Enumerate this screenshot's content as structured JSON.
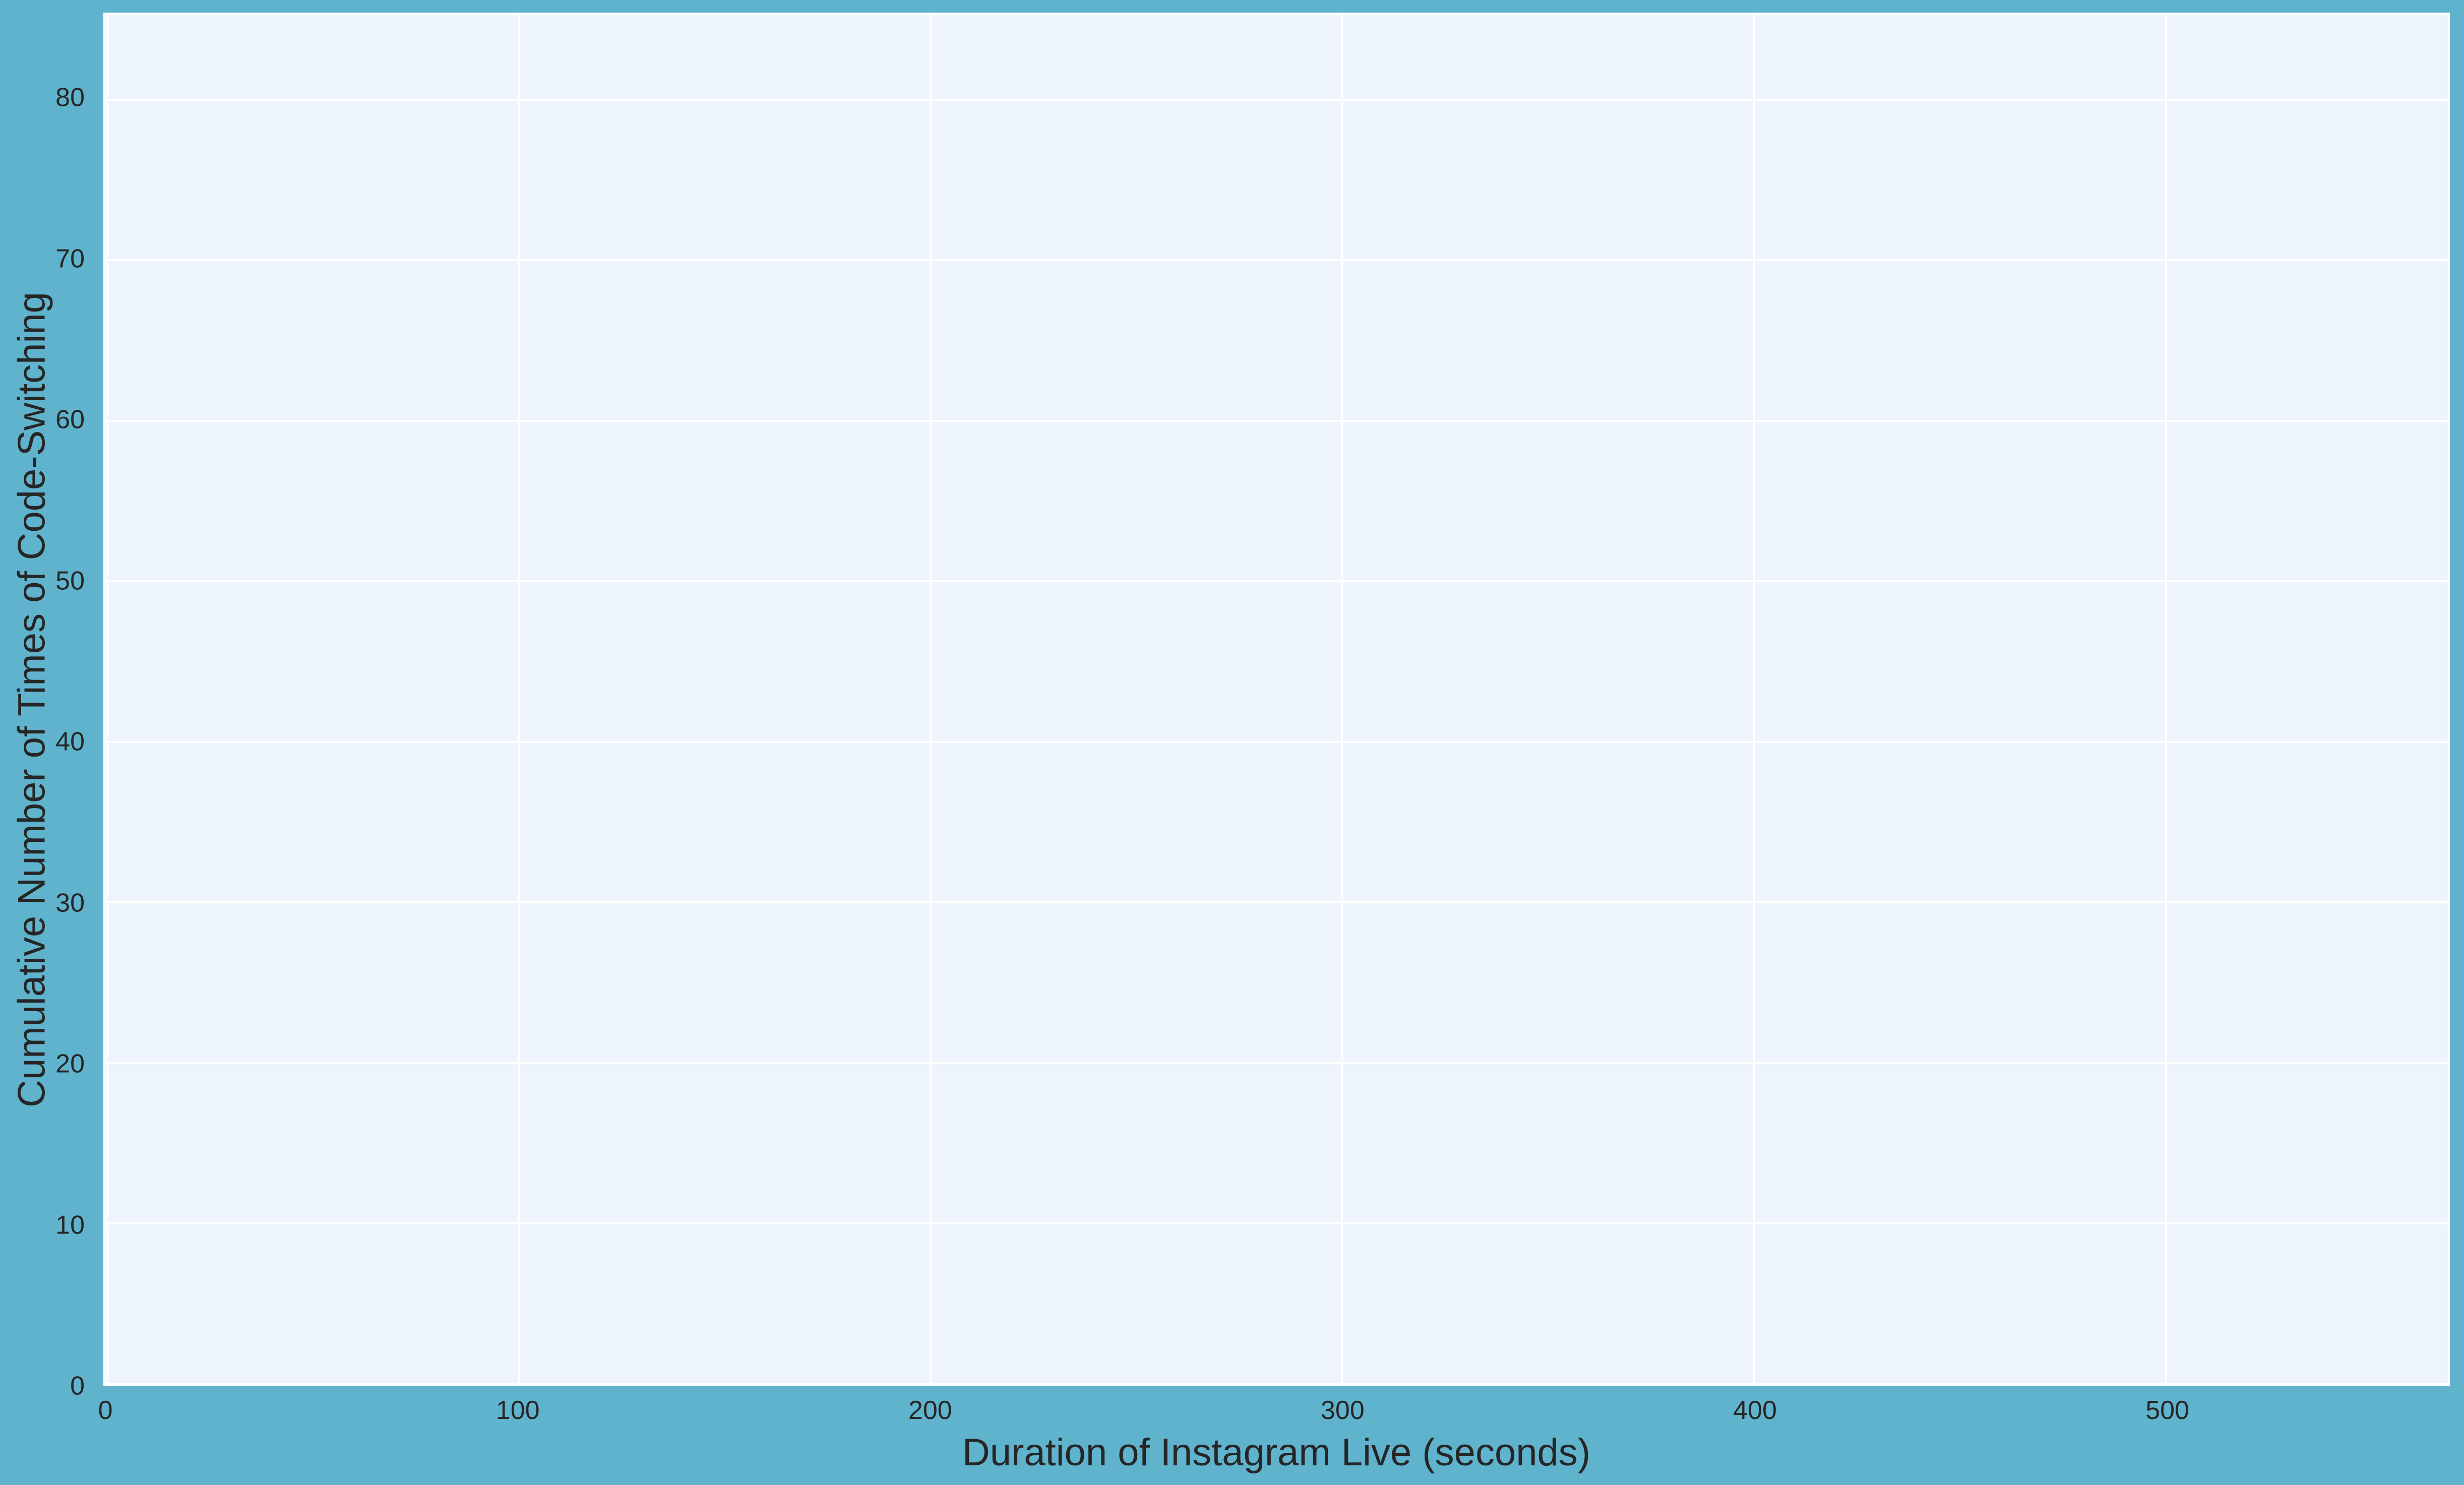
{
  "figure": {
    "background_color": "#60B3CD",
    "plot_background_color": "#EDF4FB",
    "grid_color": "#FFFFFF",
    "text_color": "#262626"
  },
  "chart_data": {
    "type": "line",
    "title": "",
    "xlabel": "Duration of Instagram Live (seconds)",
    "ylabel": "Cumulative Number of Times of Code-Switching",
    "x_ticks": [
      0,
      100,
      200,
      300,
      400,
      500
    ],
    "y_ticks": [
      0,
      10,
      20,
      30,
      40,
      50,
      60,
      70,
      80
    ],
    "x_tick_labels": [
      "0",
      "100",
      "200",
      "300",
      "400",
      "500"
    ],
    "y_tick_labels": [
      "0",
      "10",
      "20",
      "30",
      "40",
      "50",
      "60",
      "70",
      "80"
    ],
    "xlim": [
      -0.5,
      568.5
    ],
    "ylim": [
      0,
      85.3
    ],
    "grid": true,
    "legend_visible": false,
    "series": []
  }
}
